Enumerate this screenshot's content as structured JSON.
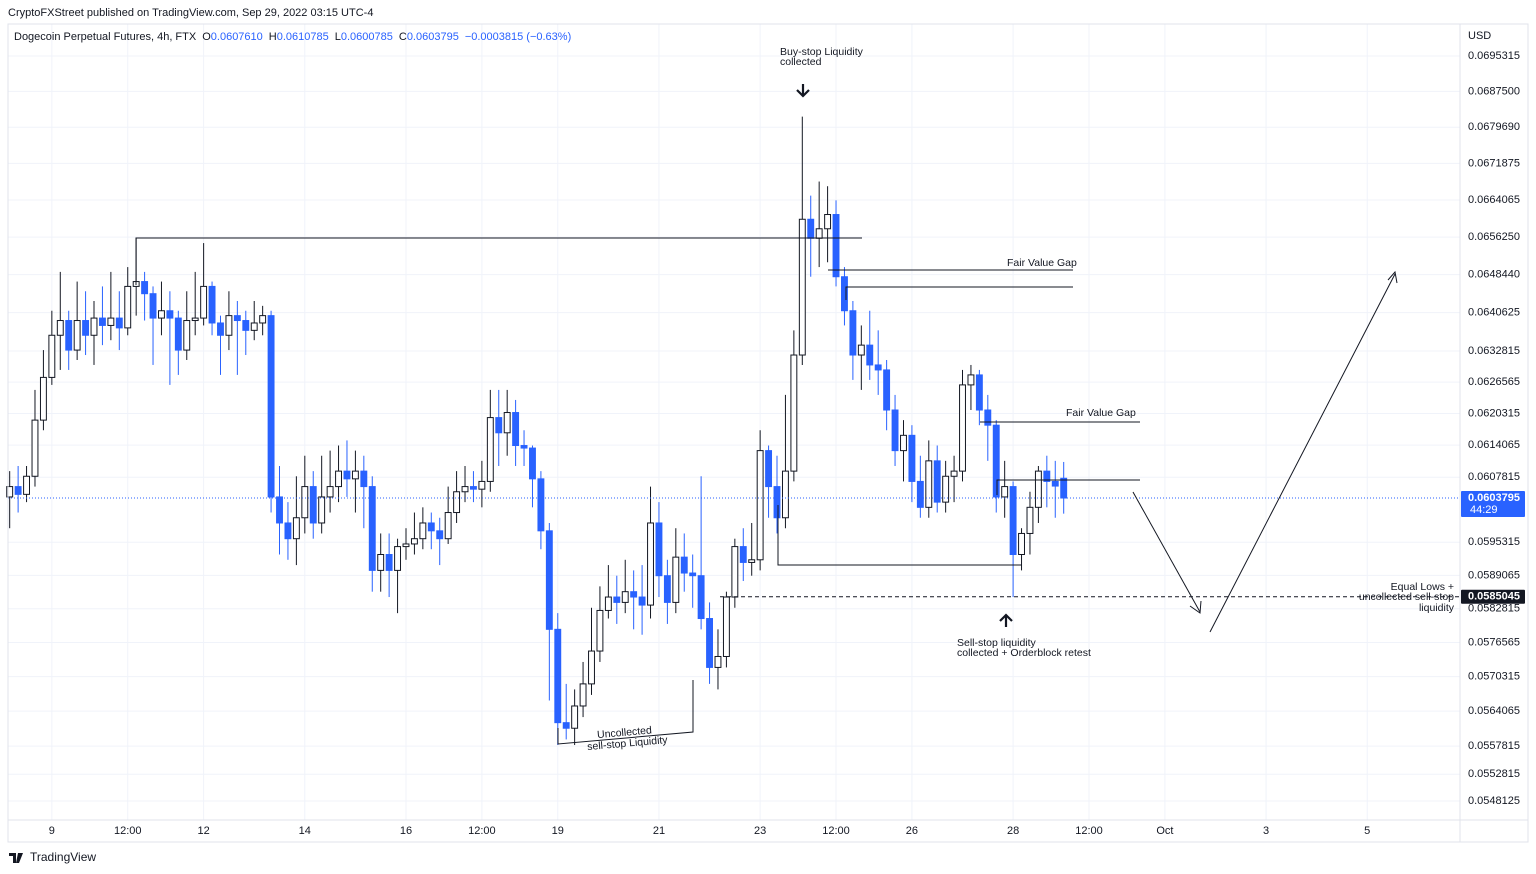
{
  "header": "CryptoFXStreet published on TradingView.com, Sep 29, 2022 03:15 UTC-4",
  "legend": {
    "symbol": "Dogecoin Perpetual Futures, 4h, FTX",
    "o_label": "O",
    "open": "0.0607610",
    "h_label": "H",
    "high": "0.0610785",
    "l_label": "L",
    "low": "0.0600785",
    "c_label": "C",
    "close": "0.0603795",
    "change": "−0.0003815 (−0.63%)"
  },
  "currency": "USD",
  "footer": "TradingView",
  "annotations": {
    "buy_stop": [
      "Buy-stop Liquidity",
      "collected"
    ],
    "fvg_1": "Fair Value Gap",
    "fvg_2": "Fair Value Gap",
    "equal_lows": [
      "Equal Lows +",
      "uncollected sell-stop",
      "liquidity"
    ],
    "sell_stop": [
      "Sell-stop liquidity",
      "collected + Orderblock retest"
    ],
    "uncollected": [
      "Uncollected",
      "sell-stop Liquidity"
    ]
  },
  "chart_data": {
    "type": "candlestick",
    "log_scale": true,
    "grid": true,
    "up_color": "#ffffff",
    "down_color": "#2962ff",
    "outline_color": "#131722",
    "xlim": [
      -0.2,
      172
    ],
    "xticks": [
      {
        "value": 5,
        "label": "9"
      },
      {
        "value": 14,
        "label": "12:00"
      },
      {
        "value": 23,
        "label": "12"
      },
      {
        "value": 35,
        "label": "14"
      },
      {
        "value": 47,
        "label": "16"
      },
      {
        "value": 56,
        "label": "12:00"
      },
      {
        "value": 65,
        "label": "19"
      },
      {
        "value": 77,
        "label": "21"
      },
      {
        "value": 89,
        "label": "23"
      },
      {
        "value": 98,
        "label": "12:00"
      },
      {
        "value": 107,
        "label": "26"
      },
      {
        "value": 119,
        "label": "28"
      },
      {
        "value": 128,
        "label": "12:00"
      },
      {
        "value": 137,
        "label": "Oct"
      },
      {
        "value": 149,
        "label": "3"
      },
      {
        "value": 161,
        "label": "5"
      }
    ],
    "ylim": [
      0.05448,
      0.070246
    ],
    "yticks": [
      0.0695315,
      {
        "value": 0.06875,
        "label": "0.0687500"
      },
      {
        "value": 0.067969,
        "label": "0.0679690"
      },
      0.0671875,
      0.0664065,
      {
        "value": 0.065625,
        "label": "0.0656250"
      },
      {
        "value": 0.064844,
        "label": "0.0648440"
      },
      0.0640625,
      0.0632815,
      0.0626565,
      0.0620315,
      0.0614065,
      0.0607815,
      0.0595315,
      0.0589065,
      0.0582815,
      0.0576565,
      0.0570315,
      0.0564065,
      0.0557815,
      0.0552815,
      0.0548125
    ],
    "price_lines": [
      {
        "value": 0.0603795,
        "color": "#2962ff",
        "countdown": "44:29"
      },
      {
        "value": 0.0585045,
        "color": "#131722"
      }
    ],
    "candles": [
      [
        0.0604,
        0.0609,
        0.0598,
        0.0606
      ],
      [
        0.0606,
        0.061,
        0.0601,
        0.06045
      ],
      [
        0.06045,
        0.061,
        0.0603,
        0.0608
      ],
      [
        0.0608,
        0.0625,
        0.0606,
        0.0619
      ],
      [
        0.0619,
        0.0633,
        0.0617,
        0.06275
      ],
      [
        0.06275,
        0.0641,
        0.0626,
        0.0636
      ],
      [
        0.0636,
        0.0649,
        0.0629,
        0.0639
      ],
      [
        0.0639,
        0.0641,
        0.0629,
        0.0633
      ],
      [
        0.0633,
        0.0647,
        0.0631,
        0.0639
      ],
      [
        0.0639,
        0.0645,
        0.0632,
        0.0636
      ],
      [
        0.0636,
        0.0643,
        0.063,
        0.06395
      ],
      [
        0.06395,
        0.0646,
        0.0634,
        0.0638
      ],
      [
        0.0638,
        0.0649,
        0.0635,
        0.06395
      ],
      [
        0.06395,
        0.0645,
        0.0633,
        0.06375
      ],
      [
        0.06375,
        0.065,
        0.0636,
        0.0646
      ],
      [
        0.0646,
        0.0656,
        0.064,
        0.0647
      ],
      [
        0.0647,
        0.0649,
        0.0639,
        0.06445
      ],
      [
        0.06445,
        0.0646,
        0.063,
        0.06395
      ],
      [
        0.06395,
        0.0647,
        0.0636,
        0.0641
      ],
      [
        0.0641,
        0.0645,
        0.0626,
        0.06395
      ],
      [
        0.06395,
        0.0641,
        0.0628,
        0.0633
      ],
      [
        0.0633,
        0.0645,
        0.0631,
        0.0639
      ],
      [
        0.0639,
        0.0649,
        0.0636,
        0.06395
      ],
      [
        0.06395,
        0.0655,
        0.0638,
        0.0646
      ],
      [
        0.0646,
        0.0647,
        0.0636,
        0.06385
      ],
      [
        0.06385,
        0.064,
        0.0628,
        0.0636
      ],
      [
        0.0636,
        0.0645,
        0.0633,
        0.064
      ],
      [
        0.064,
        0.0643,
        0.0628,
        0.0639
      ],
      [
        0.0639,
        0.0641,
        0.0632,
        0.0637
      ],
      [
        0.0637,
        0.0643,
        0.0635,
        0.06385
      ],
      [
        0.06385,
        0.0642,
        0.0636,
        0.064
      ],
      [
        0.064,
        0.0641,
        0.0601,
        0.0604
      ],
      [
        0.0604,
        0.061,
        0.0593,
        0.0599
      ],
      [
        0.0599,
        0.0603,
        0.0592,
        0.0596
      ],
      [
        0.0596,
        0.0608,
        0.0591,
        0.06
      ],
      [
        0.06,
        0.0612,
        0.0597,
        0.0606
      ],
      [
        0.0606,
        0.0609,
        0.0596,
        0.0599
      ],
      [
        0.0599,
        0.0612,
        0.0597,
        0.0604
      ],
      [
        0.0604,
        0.0613,
        0.0601,
        0.0606
      ],
      [
        0.0606,
        0.0614,
        0.0603,
        0.0609
      ],
      [
        0.0609,
        0.0615,
        0.0604,
        0.06075
      ],
      [
        0.06075,
        0.0613,
        0.0601,
        0.0609
      ],
      [
        0.0609,
        0.0612,
        0.0598,
        0.0606
      ],
      [
        0.0606,
        0.0608,
        0.0586,
        0.059
      ],
      [
        0.059,
        0.0597,
        0.0586,
        0.0593
      ],
      [
        0.0593,
        0.0597,
        0.0585,
        0.059
      ],
      [
        0.059,
        0.0596,
        0.0582,
        0.05945
      ],
      [
        0.05945,
        0.0598,
        0.0592,
        0.0595
      ],
      [
        0.0595,
        0.0601,
        0.0593,
        0.0596
      ],
      [
        0.0596,
        0.0602,
        0.0594,
        0.0599
      ],
      [
        0.0599,
        0.0601,
        0.0594,
        0.05975
      ],
      [
        0.05975,
        0.06,
        0.0591,
        0.0596
      ],
      [
        0.0596,
        0.0606,
        0.0595,
        0.0601
      ],
      [
        0.0601,
        0.0609,
        0.0599,
        0.0605
      ],
      [
        0.0605,
        0.061,
        0.0603,
        0.0606
      ],
      [
        0.0606,
        0.0609,
        0.0603,
        0.06055
      ],
      [
        0.06055,
        0.0611,
        0.0602,
        0.0607
      ],
      [
        0.0607,
        0.0625,
        0.0605,
        0.06195
      ],
      [
        0.06195,
        0.0625,
        0.061,
        0.06165
      ],
      [
        0.06165,
        0.0625,
        0.0612,
        0.06205
      ],
      [
        0.06205,
        0.0623,
        0.061,
        0.0614
      ],
      [
        0.0614,
        0.0617,
        0.061,
        0.06135
      ],
      [
        0.06135,
        0.0614,
        0.0602,
        0.06075
      ],
      [
        0.06075,
        0.0609,
        0.0594,
        0.05975
      ],
      [
        0.05975,
        0.0599,
        0.0566,
        0.0579
      ],
      [
        0.0579,
        0.0582,
        0.0558,
        0.0562
      ],
      [
        0.0562,
        0.0569,
        0.0559,
        0.0561
      ],
      [
        0.0561,
        0.0568,
        0.0558,
        0.0565
      ],
      [
        0.0565,
        0.0573,
        0.0563,
        0.0569
      ],
      [
        0.0569,
        0.0583,
        0.0567,
        0.0575
      ],
      [
        0.0575,
        0.0587,
        0.0573,
        0.05825
      ],
      [
        0.05825,
        0.0591,
        0.0581,
        0.0585
      ],
      [
        0.0585,
        0.0589,
        0.058,
        0.0584
      ],
      [
        0.0584,
        0.0592,
        0.0582,
        0.0586
      ],
      [
        0.0586,
        0.059,
        0.0579,
        0.0585
      ],
      [
        0.0585,
        0.0591,
        0.0578,
        0.05835
      ],
      [
        0.05835,
        0.0606,
        0.0581,
        0.0599
      ],
      [
        0.0599,
        0.0603,
        0.0585,
        0.0589
      ],
      [
        0.0589,
        0.0592,
        0.058,
        0.0584
      ],
      [
        0.0584,
        0.0598,
        0.0582,
        0.05925
      ],
      [
        0.05925,
        0.0597,
        0.0586,
        0.05895
      ],
      [
        0.05895,
        0.0593,
        0.0583,
        0.0589
      ],
      [
        0.0589,
        0.0608,
        0.0579,
        0.0581
      ],
      [
        0.0581,
        0.0584,
        0.0569,
        0.0572
      ],
      [
        0.0572,
        0.0579,
        0.0568,
        0.0574
      ],
      [
        0.0574,
        0.0586,
        0.0572,
        0.0585
      ],
      [
        0.0585,
        0.0596,
        0.0583,
        0.05945
      ],
      [
        0.05945,
        0.0598,
        0.0588,
        0.05915
      ],
      [
        0.05915,
        0.0599,
        0.0589,
        0.0592
      ],
      [
        0.0592,
        0.0617,
        0.059,
        0.0613
      ],
      [
        0.0613,
        0.0614,
        0.06,
        0.0606
      ],
      [
        0.0606,
        0.0612,
        0.0597,
        0.06
      ],
      [
        0.06,
        0.0624,
        0.0598,
        0.0609
      ],
      [
        0.0609,
        0.0637,
        0.0607,
        0.0632
      ],
      [
        0.0632,
        0.0682,
        0.063,
        0.066
      ],
      [
        0.066,
        0.0665,
        0.0648,
        0.0656
      ],
      [
        0.0656,
        0.0668,
        0.065,
        0.0658
      ],
      [
        0.0658,
        0.0667,
        0.0651,
        0.0661
      ],
      [
        0.0661,
        0.0664,
        0.0646,
        0.0648
      ],
      [
        0.0648,
        0.065,
        0.0638,
        0.0641
      ],
      [
        0.0641,
        0.0643,
        0.0627,
        0.0632
      ],
      [
        0.0632,
        0.0638,
        0.0625,
        0.0634
      ],
      [
        0.0634,
        0.0641,
        0.0627,
        0.063
      ],
      [
        0.063,
        0.0637,
        0.0624,
        0.0629
      ],
      [
        0.0629,
        0.0631,
        0.0617,
        0.0621
      ],
      [
        0.0621,
        0.0624,
        0.061,
        0.0613
      ],
      [
        0.0613,
        0.0619,
        0.0607,
        0.0616
      ],
      [
        0.0616,
        0.0618,
        0.0603,
        0.0607
      ],
      [
        0.0607,
        0.0612,
        0.06,
        0.0602
      ],
      [
        0.0602,
        0.0615,
        0.06,
        0.0611
      ],
      [
        0.0611,
        0.0614,
        0.0601,
        0.0603
      ],
      [
        0.0603,
        0.0611,
        0.0601,
        0.0608
      ],
      [
        0.0608,
        0.0612,
        0.0603,
        0.0609
      ],
      [
        0.0609,
        0.0629,
        0.0607,
        0.0626
      ],
      [
        0.0626,
        0.063,
        0.0621,
        0.0628
      ],
      [
        0.0628,
        0.0629,
        0.0618,
        0.0621
      ],
      [
        0.0621,
        0.0624,
        0.0611,
        0.0618
      ],
      [
        0.0618,
        0.0619,
        0.0601,
        0.0604
      ],
      [
        0.0604,
        0.0611,
        0.06,
        0.0606
      ],
      [
        0.0606,
        0.0607,
        0.0585,
        0.0593
      ],
      [
        0.0593,
        0.0598,
        0.059,
        0.0597
      ],
      [
        0.0597,
        0.0605,
        0.0593,
        0.0602
      ],
      [
        0.0602,
        0.061,
        0.0599,
        0.0609
      ],
      [
        0.0609,
        0.0612,
        0.0602,
        0.0607
      ],
      [
        0.0607,
        0.0611,
        0.06,
        0.06061
      ],
      [
        0.060761,
        0.0610785,
        0.0600785,
        0.0603795
      ]
    ]
  }
}
